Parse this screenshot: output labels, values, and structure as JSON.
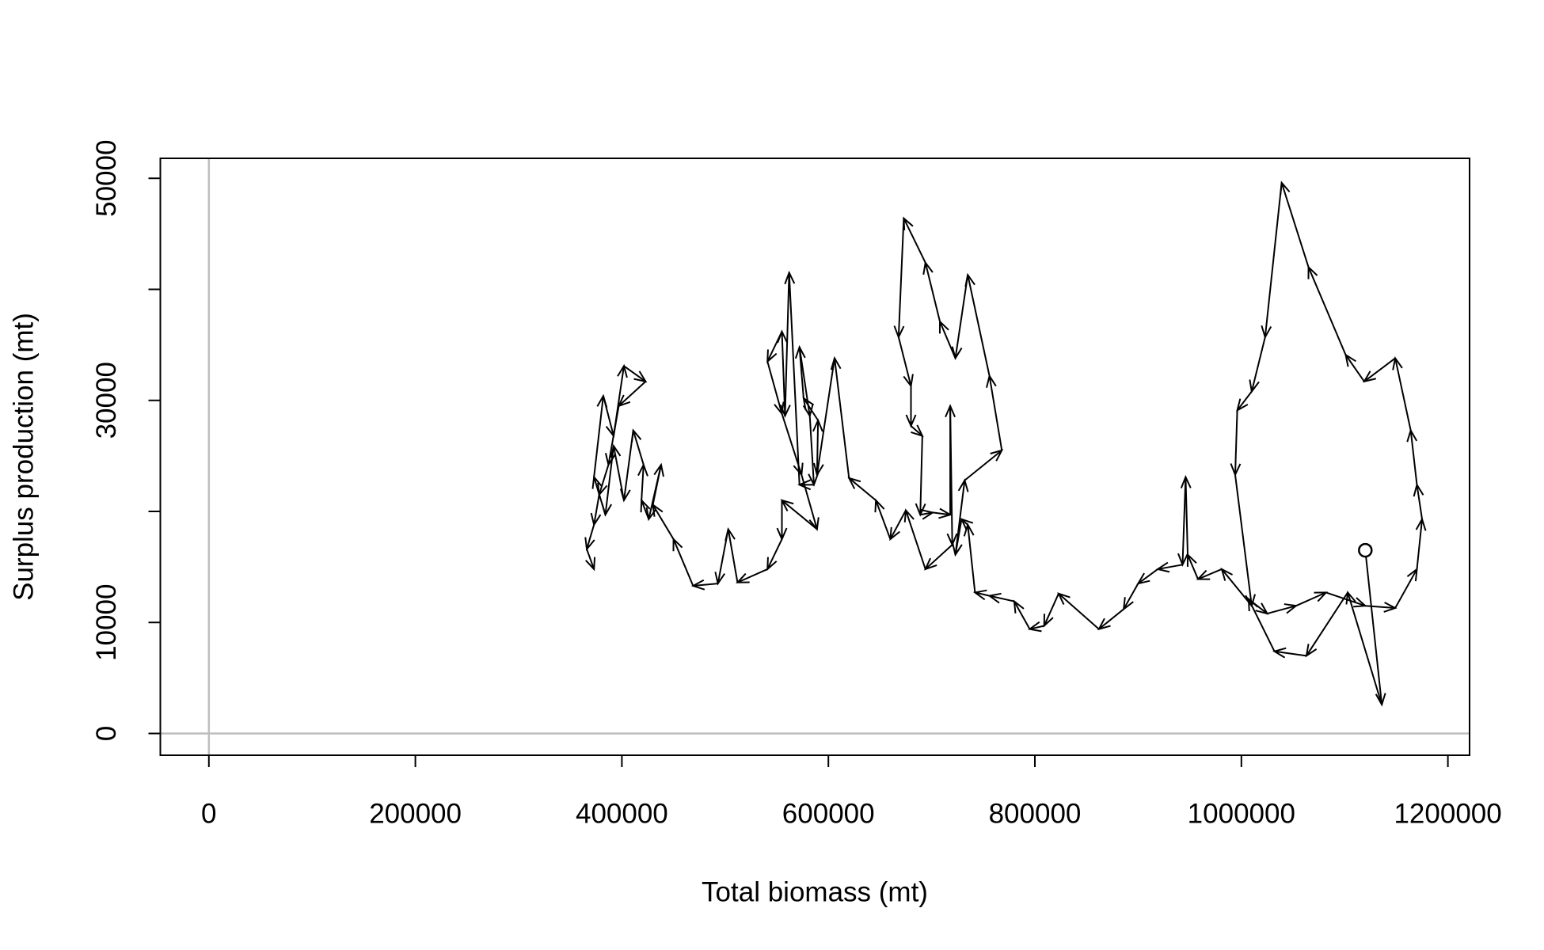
{
  "chart_data": {
    "type": "phase-arrows",
    "x_label": "Total biomass (mt)",
    "y_label": "Surplus production (mt)",
    "xlim": [
      -47000,
      1221000
    ],
    "ylim": [
      -1960,
      51800
    ],
    "xticks": [
      0,
      200000,
      400000,
      600000,
      800000,
      1000000,
      1200000
    ],
    "yticks": [
      0,
      10000,
      {
        "value": 20000,
        "label": null
      },
      30000,
      {
        "value": 40000,
        "label": null
      },
      50000
    ],
    "zero_lines": true,
    "color": "#000000",
    "zero_line_color": "#bebebe",
    "start_marker": true,
    "x": [
      1120000,
      1136000,
      1103000,
      1063000,
      1032000,
      1007000,
      1025000,
      1053000,
      1082000,
      1120000,
      1149000,
      1170000,
      1175000,
      1170000,
      1164000,
      1149000,
      1119000,
      1101000,
      1065000,
      1039000,
      1023000,
      1010000,
      996000,
      994000,
      1010000,
      981000,
      958000,
      948000,
      946000,
      943000,
      919000,
      900000,
      886000,
      862000,
      823000,
      809000,
      795000,
      780000,
      756000,
      742000,
      735000,
      729000,
      723000,
      732000,
      768000,
      756000,
      735000,
      723000,
      708000,
      694000,
      673000,
      668000,
      680000,
      680000,
      691000,
      689000,
      701000,
      718000,
      718000,
      720000,
      694000,
      675000,
      660000,
      646000,
      620000,
      606000,
      589000,
      590000,
      576000,
      572000,
      582000,
      586000,
      572000,
      562000,
      558000,
      555000,
      541000,
      555000,
      574000,
      589000,
      555000,
      555000,
      541000,
      512000,
      503000,
      493000,
      469000,
      450000,
      430000,
      438000,
      426000,
      419000,
      421000,
      411000,
      402000,
      392000,
      384000,
      373000,
      382000,
      392000,
      402000,
      423000,
      397000,
      387000,
      378000,
      373000,
      366000,
      373000
    ],
    "values": [
      16500,
      2600,
      12700,
      7000,
      7400,
      12100,
      10800,
      11500,
      12700,
      11500,
      11300,
      14800,
      19300,
      22400,
      27300,
      33800,
      31700,
      34100,
      42000,
      49600,
      35700,
      30800,
      29100,
      23300,
      11500,
      14800,
      13900,
      16100,
      23100,
      15200,
      14800,
      13500,
      11200,
      9400,
      12600,
      9700,
      9400,
      11900,
      12400,
      12700,
      18800,
      19300,
      16100,
      22800,
      25500,
      32200,
      41300,
      33800,
      37100,
      42400,
      46400,
      35700,
      31300,
      27700,
      26800,
      19700,
      19900,
      19700,
      29500,
      17000,
      14800,
      20100,
      17500,
      21000,
      23000,
      33800,
      23300,
      28200,
      30200,
      34800,
      28600,
      22400,
      22400,
      41500,
      28600,
      36200,
      33500,
      28800,
      23300,
      18400,
      21000,
      17500,
      14800,
      13600,
      18400,
      13500,
      13300,
      17500,
      20600,
      24200,
      19300,
      21000,
      24200,
      27300,
      21000,
      25900,
      19700,
      23100,
      30400,
      26800,
      33100,
      31700,
      29500,
      24200,
      21500,
      18800,
      16600,
      14800
    ]
  }
}
